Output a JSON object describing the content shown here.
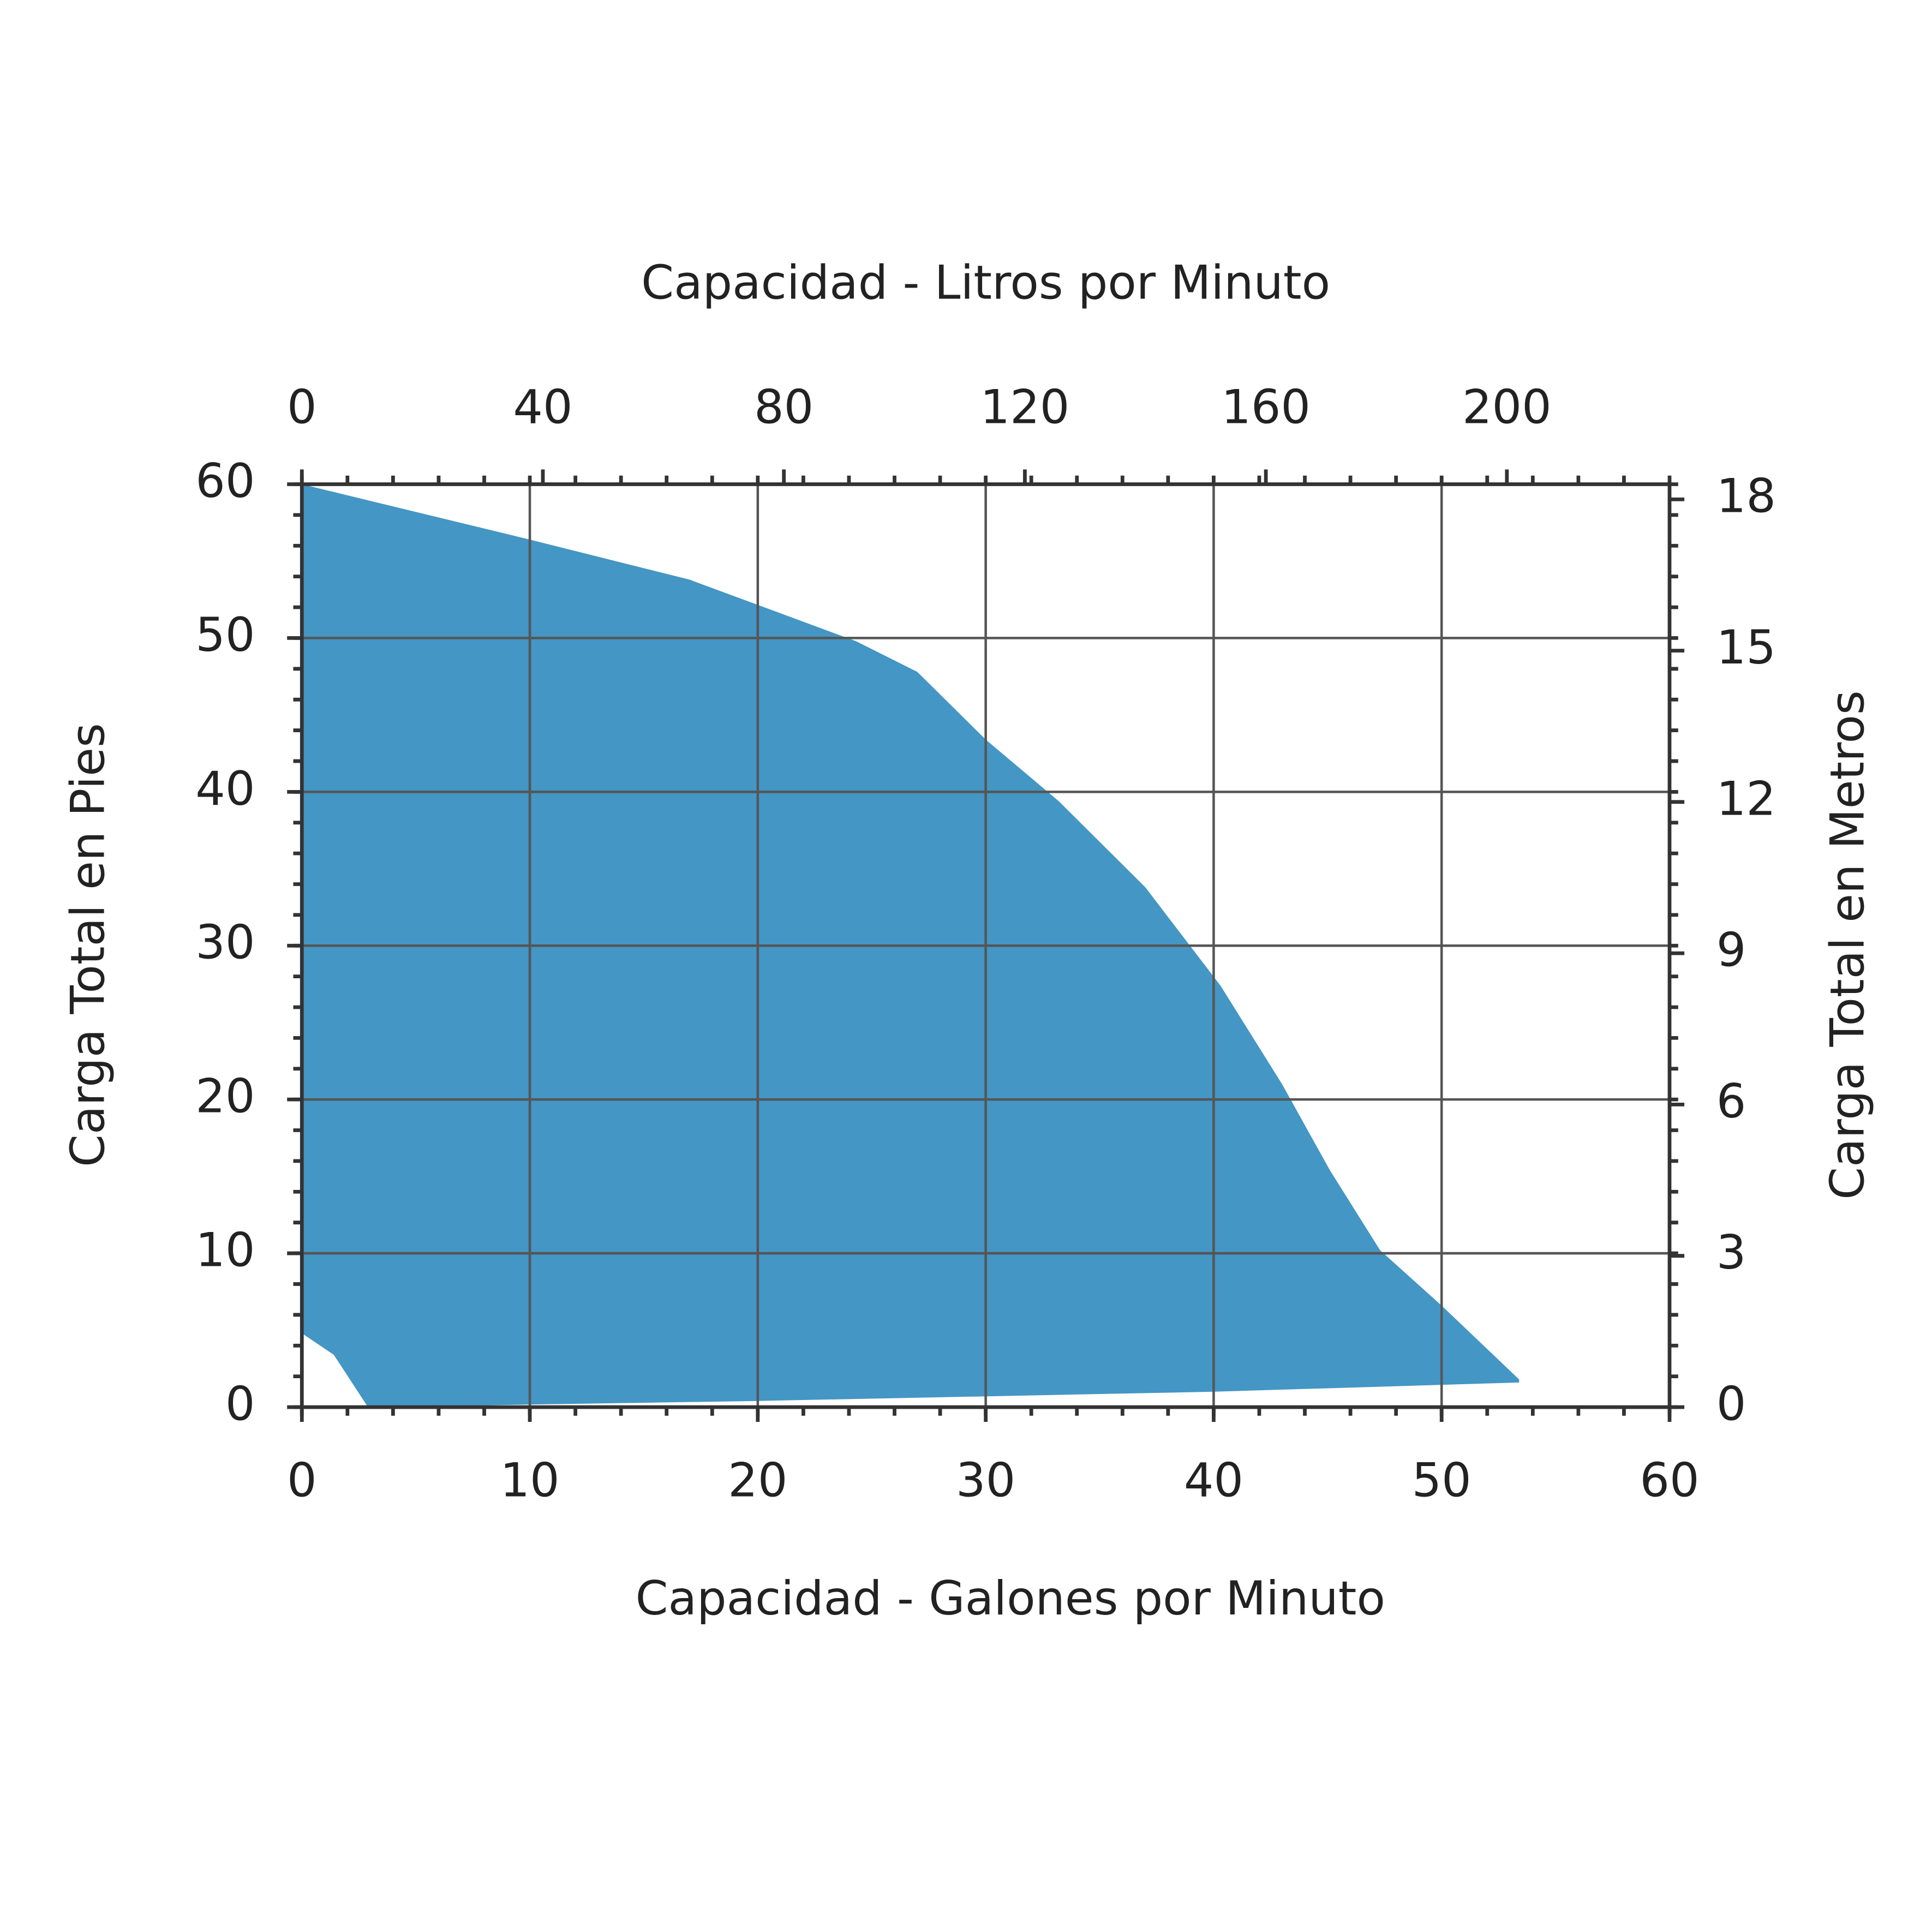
{
  "chart_data": {
    "type": "range-area",
    "xlabel": "Capacidad - Galones por Minuto",
    "x2label": "Capacidad - Litros por Minuto",
    "ylabel": "Carga Total en Pies",
    "y2label": "Carga Total en Metros",
    "xlim": [
      0,
      60
    ],
    "xticks": [
      0,
      10,
      20,
      30,
      40,
      50,
      60
    ],
    "x2lim": [
      0,
      227
    ],
    "x2ticks": [
      0,
      40,
      80,
      120,
      160,
      200
    ],
    "ylim": [
      0,
      60
    ],
    "yticks": [
      0,
      10,
      20,
      30,
      40,
      50,
      60
    ],
    "y2lim": [
      0,
      18.3
    ],
    "y2ticks": [
      0,
      3,
      6,
      9,
      12,
      15,
      18
    ],
    "grid": true,
    "color": "#4496c4",
    "series": [
      {
        "x": [
          0,
          10,
          17,
          24.3,
          27,
          30,
          33.2,
          37,
          40.3,
          43,
          45.1,
          47.3,
          50,
          53.4
        ],
        "values": [
          60,
          56.4,
          53.8,
          49.8,
          47.8,
          43.4,
          39.4,
          33.8,
          27.4,
          21,
          15.4,
          10.2,
          6.6,
          1.8
        ]
      },
      {
        "x": [
          0,
          1.4,
          2.9,
          20,
          40,
          53.4
        ],
        "values": [
          4.8,
          3.4,
          0,
          0.4,
          1,
          1.6
        ]
      }
    ]
  }
}
